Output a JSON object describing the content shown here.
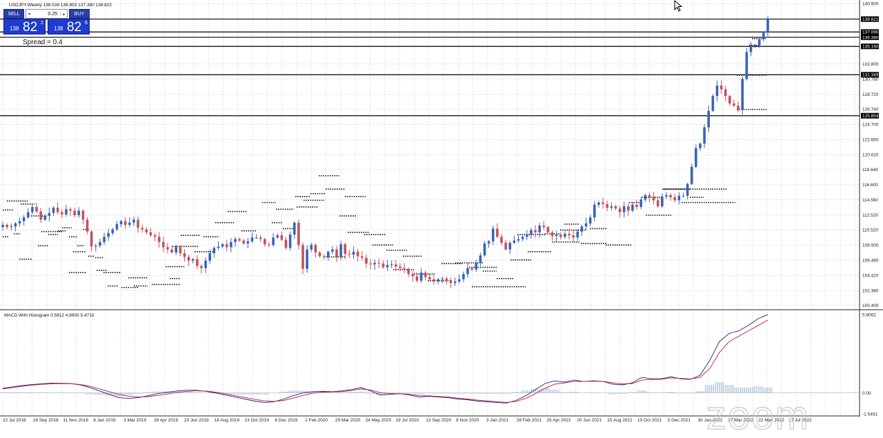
{
  "symbol_header": "USDJPY,Weekly  138.539 138.853 137.380 138.822",
  "trade_panel": {
    "sell_label": "SELL",
    "buy_label": "BUY",
    "lot_value": "0.25",
    "sell_prefix": "138",
    "sell_big": "82",
    "sell_sup": "2",
    "buy_prefix": "138",
    "buy_big": "82",
    "buy_sup": "6",
    "spread": "Spread = 0.4"
  },
  "watermark": "zoom",
  "colors": {
    "bull": "#3a62b8",
    "bear": "#c4515a",
    "grid": "#c9d2dc",
    "hline": "#000000",
    "macd_line": "#1a1a8c",
    "signal_line": "#c0182a",
    "histogram": "#a9bdd8"
  },
  "chart_data": [
    {
      "type": "candlestick",
      "symbol": "USDJPY",
      "timeframe": "Weekly",
      "ohlc_last": {
        "open": 138.539,
        "high": 138.853,
        "low": 137.38,
        "close": 138.822
      },
      "ylim": [
        100.0,
        141.2
      ],
      "y_ticks": [
        "140.900",
        "138.821",
        "137.090",
        "136.380",
        "135.160",
        "132.800",
        "131.349",
        "130.760",
        "128.720",
        "126.740",
        "125.854",
        "124.700",
        "122.660",
        "120.620",
        "118.640",
        "116.600",
        "114.560",
        "112.520",
        "110.520",
        "108.500",
        "106.460",
        "104.420",
        "102.380",
        "100.400"
      ],
      "horizontal_levels": [
        {
          "value": 138.821,
          "label": "138.821"
        },
        {
          "value": 137.09,
          "label": "137.090"
        },
        {
          "value": 136.38,
          "label": "136.380"
        },
        {
          "value": 135.16,
          "label": "135.160"
        },
        {
          "value": 131.349,
          "label": "131.349"
        },
        {
          "value": 125.854,
          "label": "125.854"
        }
      ],
      "x_ticks": [
        "22 Jul 2018",
        "16 Sep 2018",
        "11 Nov 2018",
        "6 Jan 2019",
        "3 Mar 2019",
        "28 Apr 2019",
        "23 Jun 2019",
        "18 Aug 2019",
        "13 Oct 2019",
        "8 Dec 2019",
        "2 Feb 2020",
        "29 Mar 2020",
        "24 May 2020",
        "19 Jul 2020",
        "13 Sep 2020",
        "8 Nov 2020",
        "3 Jan 2021",
        "28 Feb 2021",
        "25 Apr 2021",
        "20 Jun 2021",
        "15 Aug 2021",
        "10 Oct 2021",
        "5 Dec 2021",
        "30 Jan 2022",
        "27 Mar 2022",
        "22 May 2022",
        "17 Jul 2022"
      ],
      "close_series": [
        111.2,
        110.9,
        111.0,
        111.4,
        111.7,
        112.2,
        112.9,
        113.6,
        113.0,
        111.9,
        112.4,
        112.8,
        113.5,
        112.9,
        112.6,
        113.3,
        113.1,
        112.5,
        113.1,
        111.9,
        110.3,
        108.3,
        108.4,
        108.9,
        109.6,
        110.1,
        110.6,
        111.3,
        111.7,
        111.2,
        111.5,
        111.9,
        110.8,
        110.6,
        110.2,
        109.8,
        109.6,
        108.9,
        108.2,
        107.9,
        107.5,
        108.2,
        107.4,
        106.9,
        106.4,
        106.6,
        105.7,
        105.4,
        106.4,
        107.4,
        108.1,
        108.3,
        108.6,
        108.2,
        108.9,
        109.3,
        109.1,
        108.7,
        109.0,
        109.5,
        109.5,
        109.3,
        108.6,
        108.5,
        109.5,
        109.8,
        109.2,
        108.1,
        109.9,
        111.5,
        108.5,
        105.3,
        107.9,
        108.5,
        107.5,
        107.0,
        106.9,
        107.6,
        107.9,
        106.9,
        108.6,
        107.3,
        107.2,
        107.6,
        107.0,
        106.8,
        106.0,
        105.9,
        106.1,
        106.0,
        105.5,
        105.8,
        105.9,
        105.6,
        105.4,
        105.3,
        104.6,
        104.3,
        103.7,
        104.8,
        104.2,
        103.9,
        103.6,
        103.9,
        104.0,
        103.8,
        103.4,
        103.6,
        103.9,
        104.6,
        105.4,
        105.2,
        106.1,
        107.1,
        108.7,
        109.0,
        110.7,
        109.6,
        108.8,
        107.9,
        108.8,
        109.1,
        109.3,
        109.6,
        109.9,
        110.5,
        110.2,
        111.1,
        110.9,
        110.2,
        109.7,
        109.9,
        109.6,
        110.0,
        109.8,
        109.5,
        110.3,
        111.0,
        111.4,
        112.2,
        113.9,
        114.2,
        114.0,
        113.5,
        113.7,
        113.4,
        112.9,
        113.7,
        113.1,
        113.9,
        113.6,
        114.6,
        115.2,
        115.0,
        114.5,
        113.7,
        115.0,
        115.2,
        114.9,
        114.5,
        115.1,
        115.1,
        116.7,
        119.0,
        121.5,
        122.1,
        124.3,
        126.5,
        128.5,
        129.9,
        129.4,
        128.5,
        127.5,
        127.2,
        126.7,
        130.8,
        134.4,
        135.2,
        135.3,
        136.1,
        137.0,
        138.8
      ]
    },
    {
      "type": "line",
      "title": "MACD With Histogram  0.5812  4.8905  5.4715",
      "ylim": [
        -1.5451,
        5.8062
      ],
      "y_ticks": [
        "5.8062",
        "0.00",
        "-1.5451"
      ],
      "series": [
        {
          "values": [
            0.35,
            0.45,
            0.55,
            0.62,
            0.68,
            0.72,
            0.72,
            0.7,
            0.6,
            0.4,
            0.15,
            -0.1,
            -0.35,
            -0.4,
            -0.35,
            -0.2,
            -0.05,
            0.05,
            0.15,
            0.2,
            0.2,
            0.12,
            0.0,
            -0.15,
            -0.3,
            -0.45,
            -0.6,
            -0.7,
            -0.65,
            -0.45,
            -0.2,
            0.0,
            0.1,
            0.12,
            0.1,
            0.15,
            0.25,
            0.4,
            0.15,
            -0.15,
            -0.1,
            -0.05,
            -0.15,
            -0.3,
            -0.25,
            -0.3,
            -0.35,
            -0.45,
            -0.5,
            -0.6,
            -0.65,
            -0.7,
            -0.75,
            -0.55,
            -0.2,
            0.25,
            0.7,
            0.9,
            0.8,
            0.95,
            0.85,
            0.9,
            0.85,
            0.65,
            0.6,
            0.75,
            1.15,
            1.05,
            1.05,
            1.2,
            1.05,
            1.0,
            1.3,
            2.4,
            3.8,
            4.4,
            4.6,
            5.0,
            5.5,
            5.8
          ]
        },
        {
          "values": [
            0.3,
            0.4,
            0.5,
            0.58,
            0.64,
            0.68,
            0.7,
            0.69,
            0.63,
            0.5,
            0.3,
            0.1,
            -0.1,
            -0.25,
            -0.3,
            -0.27,
            -0.18,
            -0.08,
            0.05,
            0.12,
            0.16,
            0.14,
            0.06,
            -0.06,
            -0.2,
            -0.33,
            -0.47,
            -0.58,
            -0.63,
            -0.55,
            -0.38,
            -0.18,
            -0.02,
            0.06,
            0.08,
            0.1,
            0.18,
            0.3,
            0.22,
            0.02,
            -0.05,
            -0.05,
            -0.1,
            -0.2,
            -0.22,
            -0.26,
            -0.3,
            -0.38,
            -0.45,
            -0.53,
            -0.58,
            -0.64,
            -0.7,
            -0.62,
            -0.4,
            -0.05,
            0.35,
            0.65,
            0.74,
            0.85,
            0.86,
            0.87,
            0.86,
            0.75,
            0.67,
            0.7,
            0.95,
            1.0,
            1.02,
            1.12,
            1.08,
            1.04,
            1.15,
            1.8,
            3.0,
            3.8,
            4.2,
            4.6,
            5.0,
            5.4
          ]
        }
      ],
      "histogram": [
        0.06,
        0.06,
        0.06,
        0.05,
        0.05,
        0.04,
        0.03,
        0.02,
        -0.03,
        -0.1,
        -0.15,
        -0.2,
        -0.25,
        -0.15,
        -0.06,
        0.07,
        0.12,
        0.14,
        0.1,
        0.08,
        0.04,
        -0.02,
        -0.06,
        -0.09,
        -0.1,
        -0.12,
        -0.13,
        -0.12,
        -0.02,
        0.1,
        0.18,
        0.18,
        0.12,
        0.06,
        0.02,
        0.05,
        0.08,
        0.1,
        -0.07,
        -0.17,
        -0.05,
        0.0,
        -0.05,
        -0.1,
        -0.03,
        -0.04,
        -0.05,
        -0.07,
        -0.05,
        -0.07,
        -0.07,
        -0.06,
        -0.05,
        0.07,
        0.2,
        0.3,
        0.35,
        0.25,
        0.06,
        0.1,
        -0.01,
        0.03,
        -0.01,
        -0.1,
        -0.07,
        0.05,
        0.2,
        0.05,
        0.03,
        0.08,
        -0.03,
        -0.04,
        0.15,
        0.6,
        0.8,
        0.6,
        0.4,
        0.4,
        0.5,
        0.4
      ]
    }
  ]
}
